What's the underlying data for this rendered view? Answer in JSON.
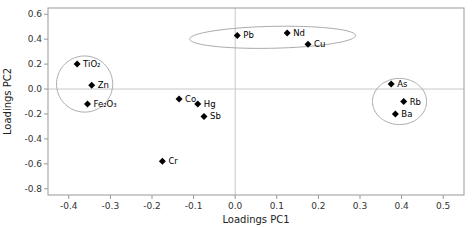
{
  "chart_data": {
    "type": "scatter",
    "xlabel": "Loadings PC1",
    "ylabel": "Loadings PC2",
    "labels": [
      "TiO₂",
      "Zn",
      "Fe₂O₃",
      "Co",
      "Hg",
      "Sb",
      "Cr",
      "Pb",
      "Nd",
      "Cu",
      "As",
      "Rb",
      "Ba"
    ],
    "x": [
      -0.38,
      -0.345,
      -0.355,
      -0.135,
      -0.09,
      -0.075,
      -0.175,
      0.005,
      0.125,
      0.175,
      0.375,
      0.405,
      0.385
    ],
    "values": [
      0.2,
      0.03,
      -0.12,
      -0.08,
      -0.12,
      -0.22,
      -0.58,
      0.43,
      0.45,
      0.36,
      0.04,
      -0.1,
      -0.2
    ],
    "color": "#000000",
    "marker": "diamond",
    "ellipses": [
      {
        "cx": -0.362,
        "cy": 0.04,
        "width": 0.135,
        "height": 0.45,
        "angle": 0
      },
      {
        "cx": 0.09,
        "cy": 0.415,
        "width": 0.4,
        "height": 0.175,
        "angle": 5
      },
      {
        "cx": 0.395,
        "cy": -0.1,
        "width": 0.13,
        "height": 0.37,
        "angle": 0
      }
    ],
    "xlim": [
      -0.45,
      0.55
    ],
    "ylim": [
      -0.85,
      0.65
    ],
    "xticks": [
      -0.4,
      -0.3,
      -0.2,
      -0.1,
      {
        "value": 0,
        "label": "0.0"
      },
      0.1,
      0.2,
      0.3,
      0.4,
      0.5
    ],
    "yticks": [
      -0.8,
      -0.6,
      -0.4,
      -0.2,
      {
        "value": 0,
        "label": "0.0"
      },
      0.2,
      0.4,
      0.6
    ],
    "grid": false
  }
}
